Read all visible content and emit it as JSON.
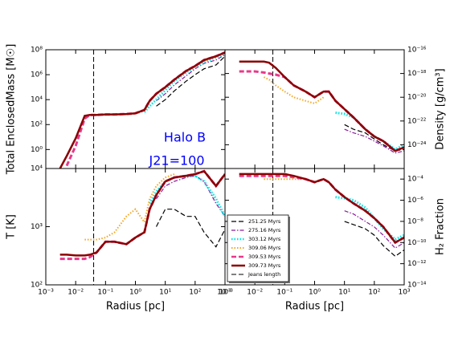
{
  "chart_data": [
    {
      "type": "line",
      "ylabel": "Total EnclosedMass [M☉]",
      "annotations": [
        "Halo B",
        "J21=100"
      ],
      "x": [
        0.003,
        0.005,
        0.01,
        0.02,
        0.03,
        0.05,
        0.1,
        0.2,
        0.5,
        1,
        2,
        3,
        5,
        10,
        20,
        50,
        100,
        200,
        500,
        1000
      ],
      "xlim": [
        0.001,
        1000
      ],
      "ylim": [
        0.03,
        100000000
      ],
      "log": true,
      "yticks": [
        {
          "value": 100000000,
          "label": "10⁸"
        },
        {
          "value": 1000000,
          "label": "10⁶"
        },
        {
          "value": 10000,
          "label": "10⁴"
        },
        {
          "value": 100,
          "label": "10²"
        },
        {
          "value": 1,
          "label": "10⁰"
        }
      ],
      "series": [
        {
          "color": "#000000",
          "dash": "dashed",
          "width": 1.2,
          "values": [
            null,
            null,
            null,
            null,
            null,
            null,
            null,
            null,
            null,
            null,
            null,
            null,
            3000,
            10000,
            50000,
            300000,
            1000000,
            3000000,
            6000000,
            30000000
          ]
        },
        {
          "color": "#8a1a9b",
          "dash": "dashdot",
          "width": 1.2,
          "values": [
            null,
            null,
            null,
            null,
            null,
            null,
            null,
            null,
            null,
            null,
            null,
            null,
            8000,
            30000,
            150000,
            800000,
            3000000,
            8000000,
            15000000,
            40000000
          ]
        },
        {
          "color": "#00e5e5",
          "dash": "dotted",
          "width": 3,
          "values": [
            null,
            null,
            null,
            null,
            null,
            null,
            null,
            null,
            null,
            null,
            1000,
            3000,
            10000,
            60000,
            300000,
            1500000,
            4000000,
            10000000,
            25000000,
            50000000
          ]
        },
        {
          "color": "#f5a623",
          "dash": "dotted",
          "width": 2,
          "values": [
            null,
            null,
            null,
            null,
            null,
            600,
            600,
            620,
            650,
            720,
            1300,
            7000,
            27000,
            90000,
            360000,
            1800000,
            4500000,
            13000000,
            27000000,
            55000000
          ]
        },
        {
          "color": "#e8388a",
          "dash": "dashed",
          "width": 3,
          "values": [
            null,
            0.05,
            2,
            300,
            600,
            600,
            650,
            650,
            700,
            800,
            1500,
            8000,
            30000,
            100000,
            400000,
            2000000,
            5000000,
            15000000,
            30000000,
            60000000
          ]
        },
        {
          "color": "#8b0000",
          "dash": "solid",
          "width": 2.5,
          "values": [
            0.03,
            0.3,
            8,
            500,
            600,
            600,
            650,
            650,
            700,
            800,
            1500,
            8000,
            30000,
            100000,
            400000,
            2000000,
            5000000,
            15000000,
            30000000,
            60000000
          ]
        }
      ]
    },
    {
      "type": "line",
      "ylabel": "Density [g/cm³]",
      "x": [
        0.003,
        0.005,
        0.01,
        0.02,
        0.03,
        0.05,
        0.1,
        0.2,
        0.5,
        1,
        2,
        3,
        5,
        10,
        20,
        50,
        100,
        200,
        500,
        1000
      ],
      "xlim": [
        0.001,
        1000
      ],
      "ylim": [
        1e-26,
        1e-16
      ],
      "log": true,
      "yticks": [
        {
          "value": 1e-16,
          "label": "10⁻¹⁶"
        },
        {
          "value": 1e-18,
          "label": "10⁻¹⁸"
        },
        {
          "value": 1e-20,
          "label": "10⁻²⁰"
        },
        {
          "value": 1e-22,
          "label": "10⁻²²"
        },
        {
          "value": 1e-24,
          "label": "10⁻²⁴"
        }
      ],
      "series": [
        {
          "color": "#000000",
          "dash": "dashed",
          "width": 1.2,
          "values": [
            null,
            null,
            null,
            null,
            null,
            null,
            null,
            null,
            null,
            null,
            null,
            null,
            null,
            5e-23,
            2e-23,
            1e-23,
            3e-24,
            1e-24,
            3e-25,
            4e-25
          ]
        },
        {
          "color": "#8a1a9b",
          "dash": "dashdot",
          "width": 1.2,
          "values": [
            null,
            null,
            null,
            null,
            null,
            null,
            null,
            null,
            null,
            null,
            null,
            null,
            null,
            2e-23,
            1e-23,
            5e-24,
            2e-24,
            8e-25,
            2e-25,
            3e-25
          ]
        },
        {
          "color": "#00e5e5",
          "dash": "dotted",
          "width": 3,
          "values": [
            null,
            null,
            null,
            null,
            null,
            null,
            null,
            null,
            null,
            null,
            null,
            null,
            5e-22,
            4e-22,
            2e-22,
            2e-23,
            5e-24,
            2e-24,
            4e-25,
            1e-24
          ]
        },
        {
          "color": "#f5a623",
          "dash": "dotted",
          "width": 2,
          "values": [
            null,
            null,
            null,
            5e-19,
            3e-19,
            1e-19,
            3e-20,
            1e-20,
            5e-21,
            3e-21,
            1e-20,
            null,
            null,
            null,
            null,
            null,
            null,
            null,
            null,
            null
          ]
        },
        {
          "color": "#e8388a",
          "dash": "dashed",
          "width": 3,
          "values": [
            1.5e-18,
            1.5e-18,
            1.5e-18,
            1.2e-18,
            1e-18,
            8e-19,
            5e-19,
            1e-19,
            3e-20,
            1e-20,
            3e-20,
            3e-20,
            5e-21,
            1e-21,
            2e-22,
            2e-23,
            5e-24,
            2e-24,
            3e-25,
            6e-25
          ]
        },
        {
          "color": "#8b0000",
          "dash": "solid",
          "width": 2.5,
          "values": [
            1e-17,
            1e-17,
            1e-17,
            1e-17,
            8e-18,
            3e-18,
            5e-19,
            1e-19,
            3e-20,
            1e-20,
            3e-20,
            3e-20,
            5e-21,
            1e-21,
            2e-22,
            2e-23,
            5e-24,
            2e-24,
            3e-25,
            6e-25
          ]
        }
      ]
    },
    {
      "type": "line",
      "ylabel": "T [K]",
      "xlabel": "Radius [pc]",
      "x": [
        0.003,
        0.005,
        0.01,
        0.02,
        0.03,
        0.05,
        0.1,
        0.2,
        0.5,
        1,
        2,
        3,
        5,
        10,
        20,
        50,
        100,
        200,
        500,
        1000
      ],
      "xlim": [
        0.001,
        1000
      ],
      "ylim": [
        100,
        10000
      ],
      "log": true,
      "xticks": [
        {
          "value": 0.001,
          "label": "10⁻³"
        },
        {
          "value": 0.01,
          "label": "10⁻²"
        },
        {
          "value": 0.1,
          "label": "10⁻¹"
        },
        {
          "value": 1,
          "label": "10⁰"
        },
        {
          "value": 10,
          "label": "10¹"
        },
        {
          "value": 100,
          "label": "10²"
        },
        {
          "value": 1000,
          "label": "10³"
        }
      ],
      "yticks": [
        {
          "value": 10000,
          "label": "10⁴"
        },
        {
          "value": 1000,
          "label": "10³"
        },
        {
          "value": 100,
          "label": "10²"
        }
      ],
      "series": [
        {
          "color": "#000000",
          "dash": "dashed",
          "width": 1.2,
          "values": [
            null,
            null,
            null,
            null,
            null,
            null,
            null,
            null,
            null,
            null,
            null,
            null,
            1000,
            2000,
            2000,
            1500,
            1500,
            800,
            450,
            900
          ]
        },
        {
          "color": "#8a1a9b",
          "dash": "dashdot",
          "width": 1.2,
          "values": [
            null,
            null,
            null,
            null,
            null,
            null,
            null,
            null,
            null,
            null,
            null,
            null,
            3000,
            5000,
            6000,
            7000,
            7500,
            6000,
            2500,
            1500
          ]
        },
        {
          "color": "#00e5e5",
          "dash": "dotted",
          "width": 3,
          "values": [
            null,
            null,
            null,
            null,
            null,
            null,
            null,
            null,
            null,
            null,
            null,
            2500,
            4000,
            6000,
            7000,
            7500,
            7500,
            6000,
            3000,
            1500
          ]
        },
        {
          "color": "#f5a623",
          "dash": "dotted",
          "width": 2,
          "values": [
            null,
            null,
            null,
            600,
            600,
            600,
            650,
            800,
            1500,
            2000,
            1200,
            3000,
            5000,
            7000,
            8000,
            null,
            null,
            null,
            null,
            null
          ]
        },
        {
          "color": "#e8388a",
          "dash": "dashed",
          "width": 3,
          "values": [
            280,
            280,
            280,
            280,
            300,
            360,
            550,
            550,
            500,
            650,
            800,
            2000,
            3500,
            6000,
            7000,
            7500,
            8000,
            9000,
            5000,
            8000
          ]
        },
        {
          "color": "#8b0000",
          "dash": "solid",
          "width": 2.5,
          "values": [
            330,
            330,
            320,
            320,
            330,
            360,
            550,
            550,
            500,
            650,
            800,
            2000,
            3500,
            6000,
            7000,
            7500,
            8000,
            9000,
            5000,
            8000
          ]
        }
      ]
    },
    {
      "type": "line",
      "ylabel": "H₂ Fraction",
      "xlabel": "Radius [pc]",
      "legend": "lower left",
      "vline": {
        "name": "Jeans length",
        "x": 0.04,
        "color": "#000000",
        "dash": "dashed"
      },
      "x": [
        0.003,
        0.005,
        0.01,
        0.02,
        0.03,
        0.05,
        0.1,
        0.2,
        0.5,
        1,
        2,
        3,
        5,
        10,
        20,
        50,
        100,
        200,
        500,
        1000
      ],
      "xlim": [
        0.001,
        1000
      ],
      "ylim": [
        1e-14,
        0.001
      ],
      "log": true,
      "xticks": [
        {
          "value": 0.001,
          "label": "10⁻³"
        },
        {
          "value": 0.01,
          "label": "10⁻²"
        },
        {
          "value": 0.1,
          "label": "10⁻¹"
        },
        {
          "value": 1,
          "label": "10⁰"
        },
        {
          "value": 10,
          "label": "10¹"
        },
        {
          "value": 100,
          "label": "10²"
        },
        {
          "value": 1000,
          "label": "10³"
        }
      ],
      "yticks": [
        {
          "value": 0.0001,
          "label": "10⁻⁴"
        },
        {
          "value": 1e-06,
          "label": "10⁻⁶"
        },
        {
          "value": 1e-08,
          "label": "10⁻⁸"
        },
        {
          "value": 1e-10,
          "label": "10⁻¹⁰"
        },
        {
          "value": 1e-12,
          "label": "10⁻¹²"
        },
        {
          "value": 1e-14,
          "label": "10⁻¹⁴"
        }
      ],
      "series": [
        {
          "name": "251.25 Myrs",
          "color": "#000000",
          "dash": "dashed",
          "width": 1.2,
          "values": [
            null,
            null,
            null,
            null,
            null,
            null,
            null,
            null,
            null,
            null,
            null,
            null,
            null,
            1e-08,
            5e-09,
            2e-09,
            5e-10,
            5e-11,
            5e-12,
            2e-11
          ]
        },
        {
          "name": "275.16 Myrs",
          "color": "#8a1a9b",
          "dash": "dashdot",
          "width": 1.2,
          "values": [
            null,
            null,
            null,
            null,
            null,
            null,
            null,
            null,
            null,
            null,
            null,
            null,
            null,
            1e-07,
            5e-08,
            1e-08,
            3e-09,
            5e-10,
            3e-11,
            1e-10
          ]
        },
        {
          "name": "303.12 Myrs",
          "color": "#00e5e5",
          "dash": "dotted",
          "width": 3,
          "values": [
            null,
            null,
            null,
            null,
            null,
            null,
            null,
            null,
            null,
            null,
            null,
            null,
            2e-06,
            1.5e-06,
            1e-06,
            2e-07,
            2e-08,
            2e-09,
            2e-10,
            5e-10
          ]
        },
        {
          "name": "309.06 Myrs",
          "color": "#f5a623",
          "dash": "dotted",
          "width": 2,
          "values": [
            null,
            null,
            null,
            0.0001,
            0.0001,
            0.0001,
            0.0001,
            0.0001,
            0.0001,
            5e-05,
            0.0001,
            null,
            null,
            null,
            null,
            null,
            null,
            null,
            null,
            null
          ]
        },
        {
          "name": "309.53 Myrs",
          "color": "#e8388a",
          "dash": "dashed",
          "width": 3,
          "values": [
            0.0002,
            0.0002,
            0.0002,
            0.0002,
            0.0002,
            0.0002,
            0.0002,
            0.00015,
            0.0001,
            5e-05,
            0.0001,
            5e-05,
            1e-05,
            2e-06,
            5e-07,
            1e-07,
            2e-08,
            3e-09,
            1e-10,
            3e-10
          ]
        },
        {
          "name": "309.73 Myrs",
          "color": "#8b0000",
          "dash": "solid",
          "width": 2.5,
          "values": [
            0.0003,
            0.0003,
            0.0003,
            0.0003,
            0.0003,
            0.0003,
            0.0003,
            0.0002,
            0.0001,
            5e-05,
            0.0001,
            5e-05,
            1e-05,
            2e-06,
            5e-07,
            1e-07,
            2e-08,
            3e-09,
            1e-10,
            3e-10
          ]
        }
      ]
    }
  ]
}
